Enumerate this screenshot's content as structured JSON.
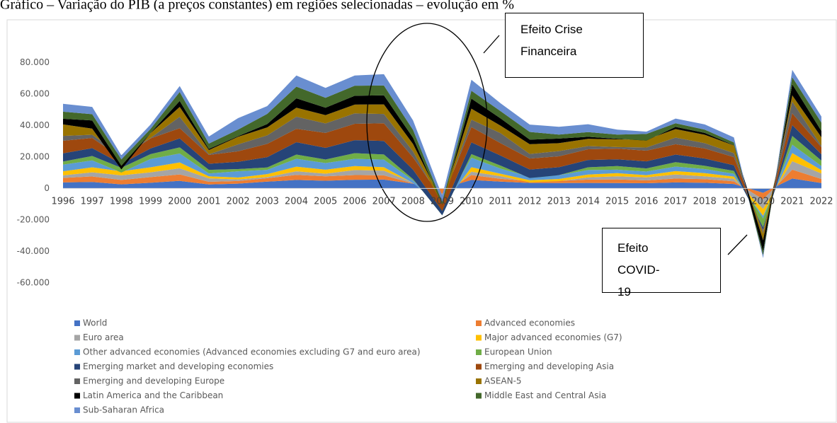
{
  "chart_data": {
    "type": "stacked-area",
    "title": "Gráfico – Variação do PIB (a preços constantes) em regiões selecionadas – evolução em %",
    "annotations": [
      "Efeito Crise Financeira",
      "Efeito COVID-19"
    ],
    "categories": [
      "1996",
      "1997",
      "1998",
      "1999",
      "2000",
      "2001",
      "2002",
      "2003",
      "2004",
      "2005",
      "2006",
      "2007",
      "2008",
      "2009",
      "2010",
      "2011",
      "2012",
      "2013",
      "2014",
      "2015",
      "2016",
      "2017",
      "2018",
      "2019",
      "2020",
      "2021",
      "2022"
    ],
    "ylim": [
      -70,
      100
    ],
    "yticks": [
      {
        "value": -60,
        "label": "-60.000"
      },
      {
        "value": -40,
        "label": "-40.000"
      },
      {
        "value": -20,
        "label": "-20.000"
      },
      0,
      {
        "value": 20,
        "label": "20.000"
      },
      {
        "value": 40,
        "label": "40.000"
      },
      {
        "value": 60,
        "label": "60.000"
      },
      {
        "value": 80,
        "label": "80.000"
      }
    ],
    "grid": false,
    "series": [
      {
        "name": "World",
        "color": "#4472c4",
        "values": [
          3.8,
          4.1,
          2.6,
          3.6,
          4.8,
          2.5,
          3.0,
          4.3,
          5.4,
          4.9,
          5.5,
          5.6,
          3.0,
          -0.1,
          5.4,
          4.3,
          3.5,
          3.4,
          3.5,
          3.4,
          3.3,
          3.8,
          3.6,
          2.8,
          -2.8,
          6.3,
          3.4
        ]
      },
      {
        "name": "Advanced economies",
        "color": "#ed7d31",
        "values": [
          2.9,
          3.5,
          2.8,
          3.6,
          4.1,
          1.7,
          1.7,
          2.2,
          3.2,
          2.8,
          3.0,
          2.7,
          0.2,
          -3.3,
          3.1,
          1.8,
          1.2,
          1.4,
          2.1,
          2.3,
          1.8,
          2.5,
          2.3,
          1.7,
          -4.2,
          5.6,
          2.6
        ]
      },
      {
        "name": "Euro area",
        "color": "#a5a5a5",
        "values": [
          1.6,
          2.6,
          2.9,
          3.0,
          3.9,
          2.2,
          1.0,
          0.7,
          2.3,
          1.7,
          3.2,
          3.0,
          0.4,
          -4.5,
          2.1,
          1.7,
          -0.9,
          -0.2,
          1.4,
          2.0,
          1.9,
          2.6,
          1.8,
          1.6,
          -6.1,
          5.4,
          3.5
        ]
      },
      {
        "name": "Major advanced economies (G7)",
        "color": "#ffc000",
        "values": [
          2.6,
          3.2,
          2.6,
          3.2,
          3.7,
          1.3,
          1.2,
          1.9,
          2.9,
          2.5,
          2.5,
          2.2,
          -0.2,
          -3.8,
          2.9,
          1.5,
          1.4,
          1.4,
          1.8,
          2.0,
          1.4,
          2.1,
          2.0,
          1.4,
          -4.4,
          5.2,
          2.1
        ]
      },
      {
        "name": "Other advanced economies (Advanced economies excluding G7 and euro area)",
        "color": "#5b9bd5",
        "values": [
          4.2,
          4.4,
          -0.8,
          5.3,
          5.7,
          1.8,
          4.0,
          2.7,
          5.0,
          4.2,
          4.6,
          4.8,
          1.7,
          -1.1,
          6.0,
          3.3,
          2.1,
          2.4,
          2.9,
          2.2,
          2.3,
          2.9,
          2.6,
          1.8,
          -1.6,
          5.3,
          2.6
        ]
      },
      {
        "name": "European Union",
        "color": "#70ad47",
        "values": [
          2.0,
          2.8,
          3.0,
          3.1,
          3.9,
          2.3,
          1.4,
          1.5,
          2.7,
          2.3,
          3.6,
          3.3,
          0.8,
          -4.3,
          2.3,
          1.9,
          -0.7,
          0.0,
          1.7,
          2.3,
          2.0,
          2.8,
          2.1,
          1.8,
          -5.6,
          5.6,
          3.5
        ]
      },
      {
        "name": "Emerging market and developing economies",
        "color": "#264478",
        "values": [
          5.2,
          5.0,
          2.5,
          3.6,
          5.7,
          3.9,
          4.6,
          6.6,
          7.9,
          7.4,
          8.3,
          8.6,
          6.0,
          2.8,
          7.5,
          6.4,
          5.4,
          5.1,
          4.7,
          4.3,
          4.5,
          4.8,
          4.6,
          3.6,
          -1.8,
          6.9,
          4.0
        ]
      },
      {
        "name": "Emerging and developing Asia",
        "color": "#9e480e",
        "values": [
          8.0,
          6.5,
          3.8,
          6.4,
          6.5,
          5.6,
          6.7,
          8.4,
          8.5,
          9.5,
          10.4,
          11.2,
          7.8,
          7.5,
          9.7,
          7.9,
          7.0,
          6.9,
          6.8,
          6.8,
          6.8,
          6.6,
          6.4,
          5.2,
          -0.5,
          7.5,
          4.5
        ]
      },
      {
        "name": "Emerging and developing Europe",
        "color": "#636363",
        "values": [
          3.1,
          2.0,
          1.7,
          0.3,
          7.2,
          0.4,
          4.4,
          5.4,
          7.7,
          6.0,
          6.6,
          5.9,
          3.8,
          -3.0,
          4.7,
          6.3,
          2.9,
          3.3,
          2.0,
          1.0,
          2.0,
          4.2,
          3.4,
          2.5,
          -1.6,
          7.4,
          0.8
        ]
      },
      {
        "name": "ASEAN-5",
        "color": "#997300",
        "values": [
          7.3,
          3.9,
          -9.0,
          3.0,
          6.3,
          2.7,
          4.8,
          5.1,
          5.7,
          5.3,
          5.6,
          6.1,
          4.7,
          1.4,
          7.0,
          4.8,
          6.2,
          5.1,
          4.6,
          4.9,
          5.0,
          5.4,
          5.3,
          4.9,
          -4.4,
          4.0,
          5.5
        ]
      },
      {
        "name": "Latin America and the Caribbean",
        "color": "#000000",
        "values": [
          3.6,
          5.2,
          2.3,
          0.2,
          3.8,
          0.7,
          0.4,
          2.1,
          6.0,
          4.7,
          5.6,
          5.8,
          4.0,
          -2.0,
          6.4,
          4.6,
          2.9,
          2.9,
          1.3,
          0.4,
          -0.6,
          1.4,
          1.2,
          0.2,
          -7.0,
          7.0,
          4.0
        ]
      },
      {
        "name": "Middle East and Central Asia",
        "color": "#43682b",
        "values": [
          4.5,
          4.0,
          4.0,
          2.5,
          5.7,
          3.4,
          4.2,
          6.5,
          7.4,
          6.3,
          6.4,
          6.2,
          5.0,
          1.8,
          5.0,
          4.6,
          4.9,
          2.5,
          3.0,
          2.6,
          4.2,
          2.3,
          2.1,
          1.7,
          -2.6,
          4.5,
          5.3
        ]
      },
      {
        "name": "Sub-Saharan Africa",
        "color": "#698ed0",
        "values": [
          5.0,
          4.6,
          2.6,
          2.8,
          3.8,
          4.5,
          7.3,
          4.9,
          7.1,
          6.3,
          6.5,
          7.2,
          6.0,
          3.9,
          7.0,
          5.0,
          4.7,
          5.0,
          5.0,
          3.2,
          1.5,
          3.0,
          3.3,
          3.2,
          -1.7,
          4.7,
          3.9
        ]
      }
    ]
  }
}
